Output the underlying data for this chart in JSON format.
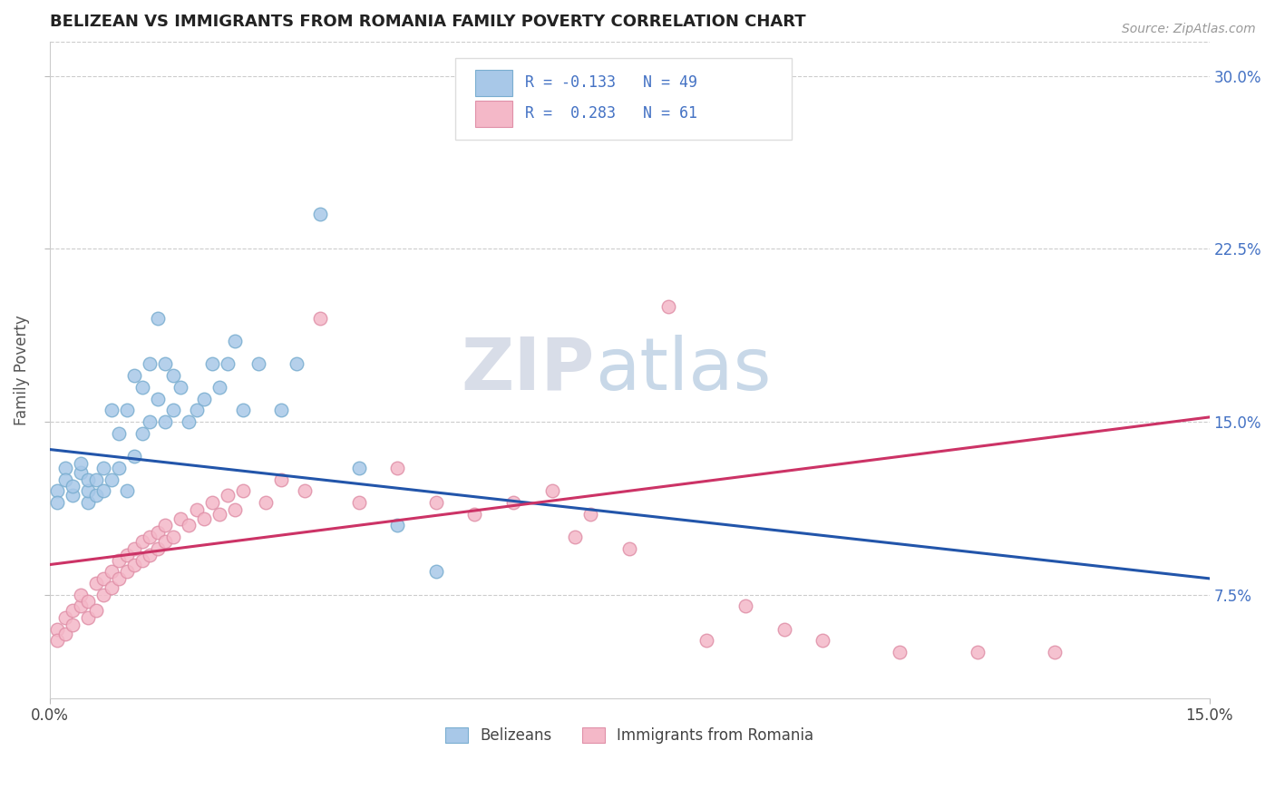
{
  "title": "BELIZEAN VS IMMIGRANTS FROM ROMANIA FAMILY POVERTY CORRELATION CHART",
  "source": "Source: ZipAtlas.com",
  "xlabel_ticks": [
    "0.0%",
    "15.0%"
  ],
  "ylabel_label": "Family Poverty",
  "ylabel_ticks": [
    "7.5%",
    "15.0%",
    "22.5%",
    "30.0%"
  ],
  "xlim": [
    0.0,
    0.15
  ],
  "ylim": [
    0.03,
    0.315
  ],
  "legend_blue_R": "R = -0.133",
  "legend_blue_N": "N = 49",
  "legend_pink_R": "R =  0.283",
  "legend_pink_N": "N = 61",
  "legend_label_blue": "Belizeans",
  "legend_label_pink": "Immigrants from Romania",
  "blue_color": "#a8c8e8",
  "blue_edge_color": "#7aaed0",
  "pink_color": "#f4b8c8",
  "pink_edge_color": "#e090a8",
  "blue_line_color": "#2255aa",
  "pink_line_color": "#cc3366",
  "watermark_zip": "ZIP",
  "watermark_atlas": "atlas",
  "blue_scatter_x": [
    0.001,
    0.001,
    0.002,
    0.002,
    0.003,
    0.003,
    0.004,
    0.004,
    0.005,
    0.005,
    0.005,
    0.006,
    0.006,
    0.007,
    0.007,
    0.008,
    0.008,
    0.009,
    0.009,
    0.01,
    0.01,
    0.011,
    0.011,
    0.012,
    0.012,
    0.013,
    0.013,
    0.014,
    0.014,
    0.015,
    0.015,
    0.016,
    0.016,
    0.017,
    0.018,
    0.019,
    0.02,
    0.021,
    0.022,
    0.023,
    0.024,
    0.025,
    0.027,
    0.03,
    0.032,
    0.035,
    0.04,
    0.045,
    0.05
  ],
  "blue_scatter_y": [
    0.12,
    0.115,
    0.13,
    0.125,
    0.118,
    0.122,
    0.128,
    0.132,
    0.115,
    0.12,
    0.125,
    0.118,
    0.125,
    0.12,
    0.13,
    0.125,
    0.155,
    0.13,
    0.145,
    0.12,
    0.155,
    0.135,
    0.17,
    0.145,
    0.165,
    0.15,
    0.175,
    0.16,
    0.195,
    0.15,
    0.175,
    0.155,
    0.17,
    0.165,
    0.15,
    0.155,
    0.16,
    0.175,
    0.165,
    0.175,
    0.185,
    0.155,
    0.175,
    0.155,
    0.175,
    0.24,
    0.13,
    0.105,
    0.085
  ],
  "pink_scatter_x": [
    0.001,
    0.001,
    0.002,
    0.002,
    0.003,
    0.003,
    0.004,
    0.004,
    0.005,
    0.005,
    0.006,
    0.006,
    0.007,
    0.007,
    0.008,
    0.008,
    0.009,
    0.009,
    0.01,
    0.01,
    0.011,
    0.011,
    0.012,
    0.012,
    0.013,
    0.013,
    0.014,
    0.014,
    0.015,
    0.015,
    0.016,
    0.017,
    0.018,
    0.019,
    0.02,
    0.021,
    0.022,
    0.023,
    0.024,
    0.025,
    0.028,
    0.03,
    0.033,
    0.035,
    0.04,
    0.045,
    0.05,
    0.055,
    0.06,
    0.065,
    0.068,
    0.07,
    0.075,
    0.08,
    0.085,
    0.09,
    0.095,
    0.1,
    0.11,
    0.12,
    0.13
  ],
  "pink_scatter_y": [
    0.06,
    0.055,
    0.065,
    0.058,
    0.068,
    0.062,
    0.07,
    0.075,
    0.065,
    0.072,
    0.068,
    0.08,
    0.075,
    0.082,
    0.078,
    0.085,
    0.082,
    0.09,
    0.085,
    0.092,
    0.088,
    0.095,
    0.09,
    0.098,
    0.092,
    0.1,
    0.095,
    0.102,
    0.098,
    0.105,
    0.1,
    0.108,
    0.105,
    0.112,
    0.108,
    0.115,
    0.11,
    0.118,
    0.112,
    0.12,
    0.115,
    0.125,
    0.12,
    0.195,
    0.115,
    0.13,
    0.115,
    0.11,
    0.115,
    0.12,
    0.1,
    0.11,
    0.095,
    0.2,
    0.055,
    0.07,
    0.06,
    0.055,
    0.05,
    0.05,
    0.05
  ],
  "blue_trend_y_start": 0.138,
  "blue_trend_y_end": 0.082,
  "pink_trend_y_start": 0.088,
  "pink_trend_y_end": 0.152
}
